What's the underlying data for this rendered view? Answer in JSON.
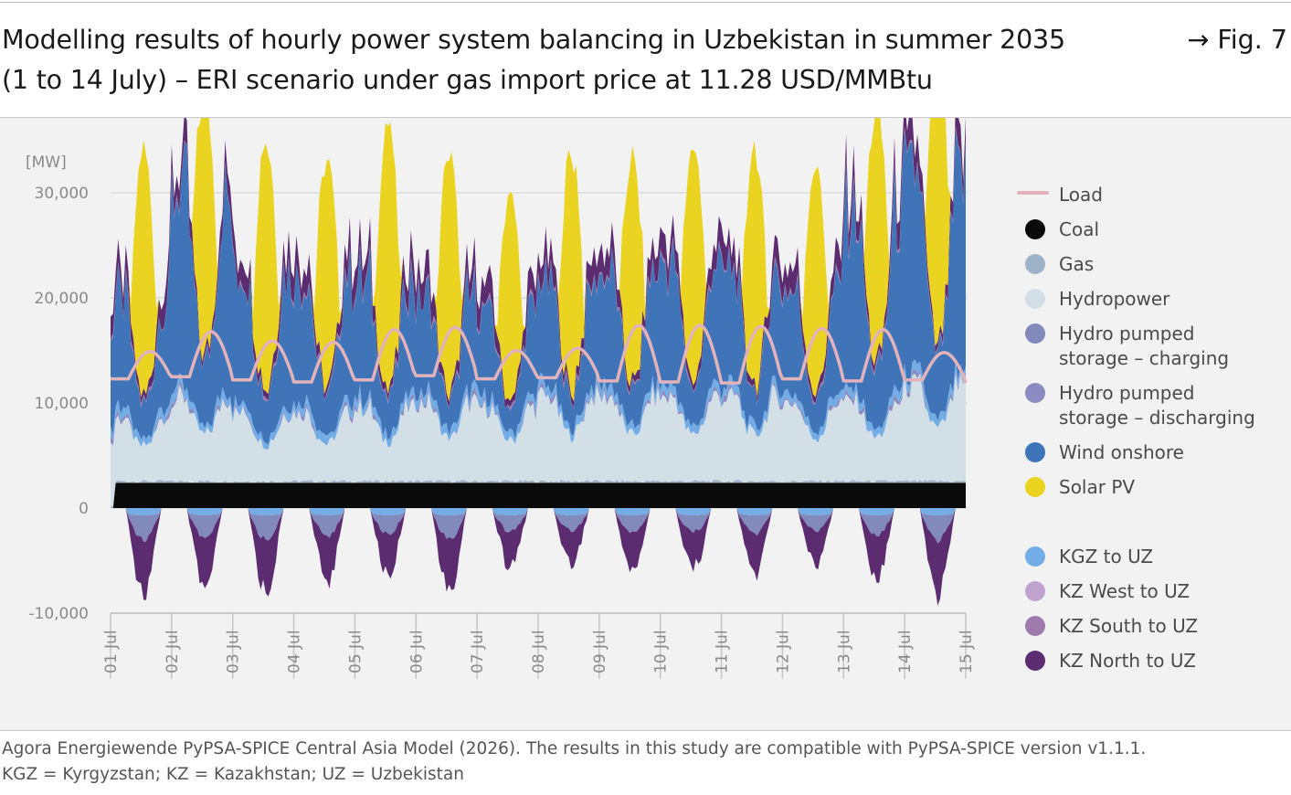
{
  "header": {
    "title_line1": "Modelling results of hourly power system balancing in Uzbekistan in summer 2035",
    "title_line2": "(1 to 14 July) – ERI scenario under gas import price at 11.28 USD/MMBtu",
    "fig_ref": "→ Fig. 7"
  },
  "footer": {
    "source": "Agora Energiewende PyPSA-SPICE Central Asia Model (2026). The results in this study are compatible with PyPSA-SPICE version v1.1.1.",
    "abbreviations": "KGZ = Kyrgyzstan; KZ = Kazakhstan; UZ = Uzbekistan"
  },
  "chart_data": {
    "type": "area",
    "title": "Modelling results of hourly power system balancing in Uzbekistan in summer 2035 (1 to 14 July) – ERI scenario under gas import price at 11.28 USD/MMBtu",
    "ylabel": "[MW]",
    "ylim": [
      -10000,
      30000
    ],
    "yticks": [
      {
        "value": 30000,
        "label": "30,000"
      },
      {
        "value": 20000,
        "label": "20,000"
      },
      {
        "value": 10000,
        "label": "10,000"
      },
      {
        "value": 0,
        "label": "0"
      },
      {
        "value": -10000,
        "label": "-10,000"
      }
    ],
    "x_days": [
      "01 Jul",
      "02 Jul",
      "03 Jul",
      "04 Jul",
      "05 Jul",
      "06 Jul",
      "07 Jul",
      "08 Jul",
      "09 Jul",
      "10 Jul",
      "11 Jul",
      "12 Jul",
      "13 Jul",
      "14 Jul",
      "15 Jul"
    ],
    "grid": true,
    "legend_position": "right",
    "series": [
      {
        "name": "Load",
        "kind": "line",
        "color": "#e3b3bb"
      },
      {
        "name": "Coal",
        "kind": "area",
        "color": "#0a0a0a"
      },
      {
        "name": "Gas",
        "kind": "area",
        "color": "#9fb3c8"
      },
      {
        "name": "Hydropower",
        "kind": "area",
        "color": "#d3dfe6"
      },
      {
        "name": "Hydro pumped storage – charging",
        "kind": "area",
        "color": "#8289bb"
      },
      {
        "name": "Hydro pumped storage – discharging",
        "kind": "area",
        "color": "#8b8bc2"
      },
      {
        "name": "Wind onshore",
        "kind": "area",
        "color": "#3f74b8"
      },
      {
        "name": "Solar PV",
        "kind": "area",
        "color": "#ead421"
      },
      {
        "name": "KGZ to UZ",
        "kind": "area",
        "color": "#74ade6"
      },
      {
        "name": "KZ West to UZ",
        "kind": "area",
        "color": "#c0a2cf"
      },
      {
        "name": "KZ South to UZ",
        "kind": "area",
        "color": "#9f7bad"
      },
      {
        "name": "KZ North to UZ",
        "kind": "area",
        "color": "#5b2c6f"
      }
    ],
    "daily_profile": {
      "coal_mw": 2400,
      "load_base_mw": [
        12300,
        12500,
        12200,
        12000,
        12200,
        12600,
        12300,
        12400,
        12100,
        12000,
        11900,
        12300,
        12100,
        12200
      ],
      "load_peak_mw": [
        14900,
        16800,
        15900,
        15800,
        17000,
        17200,
        15000,
        15200,
        17400,
        17400,
        17300,
        17100,
        17000,
        14800
      ],
      "solar_peak_top_mw": [
        23600,
        24700,
        23600,
        21500,
        25500,
        22900,
        19900,
        22600,
        21500,
        22400,
        22500,
        21600,
        24000,
        26500,
        22800
      ],
      "wind_peak_mw": [
        12000,
        21000,
        15000,
        14000,
        13000,
        11000,
        10000,
        12000,
        13000,
        14000,
        13000,
        12000,
        19000,
        21000,
        17500
      ],
      "hydro_mw": [
        6000,
        8000,
        6500,
        6500,
        7000,
        7500,
        7000,
        8000,
        8000,
        8000,
        8000,
        7500,
        7500,
        9000,
        6000
      ],
      "export_trough_mw": [
        -9000,
        -8700,
        -8800,
        -7500,
        -6800,
        -9000,
        -6000,
        -5500,
        -6500,
        -6200,
        -6800,
        -5500,
        -7000,
        -9000,
        -8000
      ],
      "final_load_mw": 11900
    }
  }
}
